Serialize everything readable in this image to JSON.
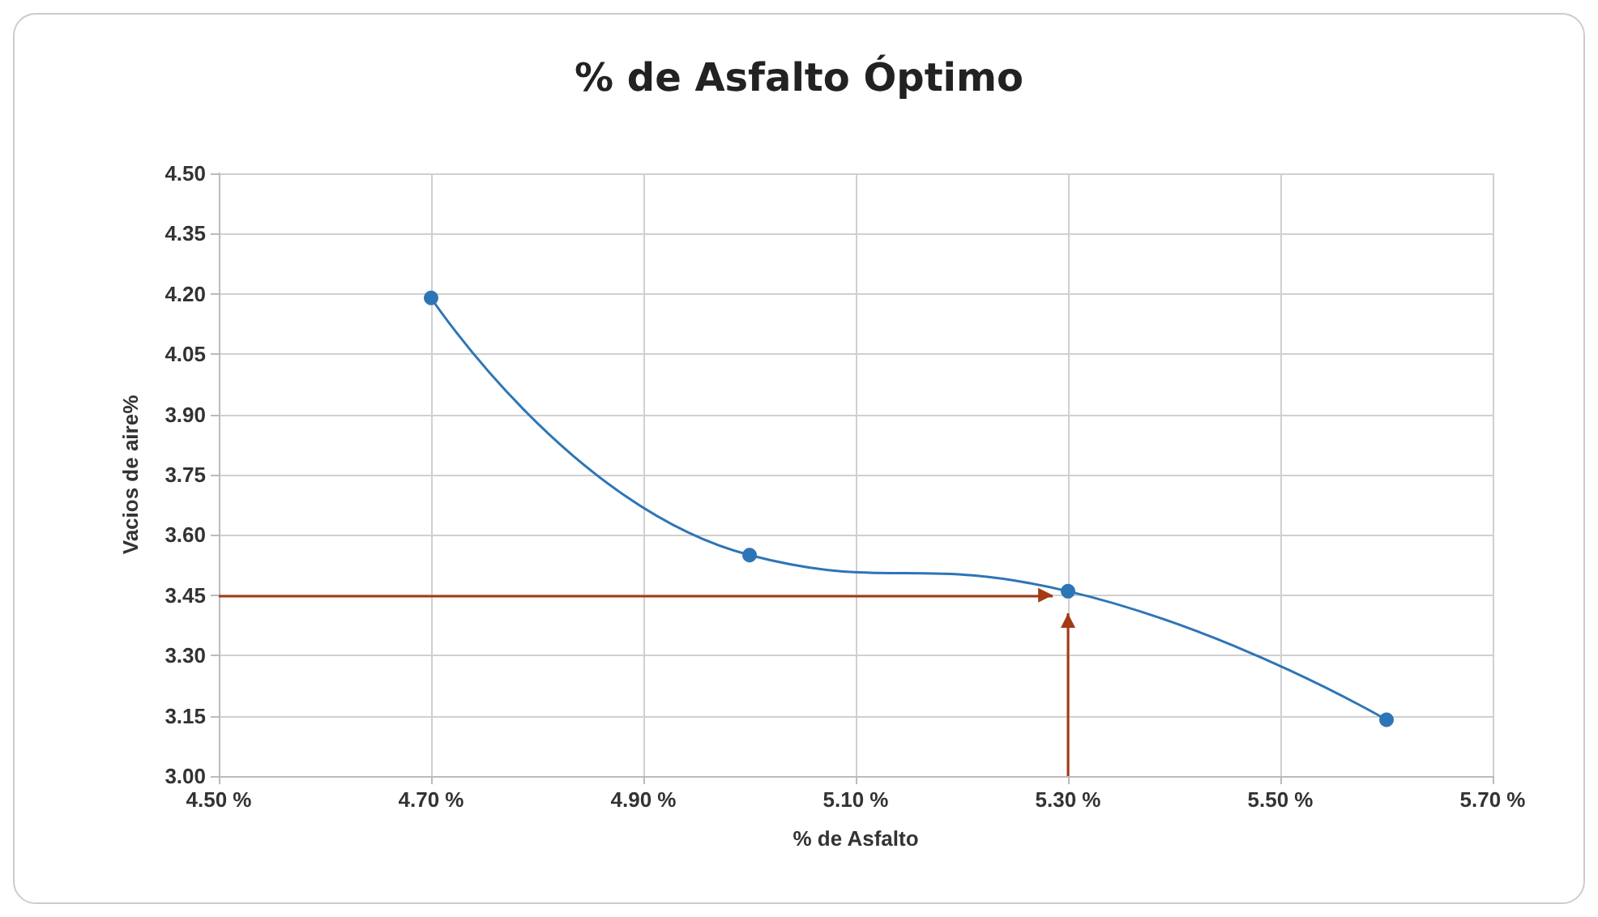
{
  "chart_data": {
    "type": "line",
    "title": "% de Asfalto Óptimo",
    "xlabel": "% de Asfalto",
    "ylabel": "Vacios de aire%",
    "x": [
      4.7,
      5.0,
      5.3,
      5.6
    ],
    "series": [
      {
        "color": "#2e75b6",
        "values": [
          4.19,
          3.55,
          3.46,
          3.14
        ]
      }
    ],
    "xlim": [
      4.5,
      5.7
    ],
    "xticks": [
      {
        "value": 4.5,
        "label": "4.50 %"
      },
      {
        "value": 4.7,
        "label": "4.70 %"
      },
      {
        "value": 4.9,
        "label": "4.90 %"
      },
      {
        "value": 5.1,
        "label": "5.10 %"
      },
      {
        "value": 5.3,
        "label": "5.30 %"
      },
      {
        "value": 5.5,
        "label": "5.50 %"
      },
      {
        "value": 5.7,
        "label": "5.70 %"
      }
    ],
    "ylim": [
      3.0,
      4.5
    ],
    "yticks": [
      {
        "value": 3.0,
        "label": "3.00"
      },
      {
        "value": 3.15,
        "label": "3.15"
      },
      {
        "value": 3.3,
        "label": "3.30"
      },
      {
        "value": 3.45,
        "label": "3.45"
      },
      {
        "value": 3.6,
        "label": "3.60"
      },
      {
        "value": 3.75,
        "label": "3.75"
      },
      {
        "value": 3.9,
        "label": "3.90"
      },
      {
        "value": 4.05,
        "label": "4.05"
      },
      {
        "value": 4.2,
        "label": "4.20"
      },
      {
        "value": 4.35,
        "label": "4.35"
      },
      {
        "value": 4.5,
        "label": "4.50"
      }
    ],
    "grid": true,
    "marker": "circle",
    "line_style": "solid",
    "ref_lines": [
      {
        "axis": "y",
        "value": 3.45,
        "color": "#a33a14"
      },
      {
        "axis": "x",
        "value": 5.3,
        "color": "#a33a14"
      }
    ]
  }
}
